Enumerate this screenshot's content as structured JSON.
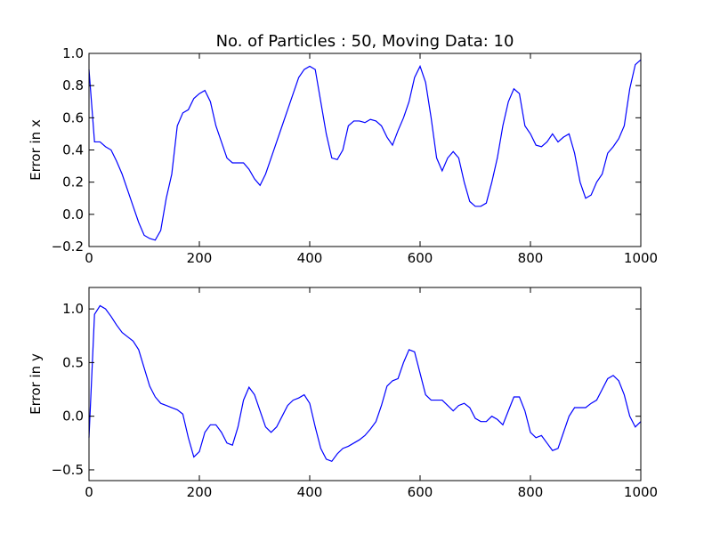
{
  "chart_data": [
    {
      "type": "line",
      "title": "No. of Particles : 50, Moving Data: 10",
      "ylabel": "Error in x",
      "color": "#0000ff",
      "x": [
        0,
        10,
        20,
        30,
        40,
        50,
        60,
        70,
        80,
        90,
        100,
        110,
        120,
        130,
        140,
        150,
        160,
        170,
        180,
        190,
        200,
        210,
        220,
        230,
        240,
        250,
        260,
        270,
        280,
        290,
        300,
        310,
        320,
        330,
        340,
        350,
        360,
        370,
        380,
        390,
        400,
        410,
        420,
        430,
        440,
        450,
        460,
        470,
        480,
        490,
        500,
        510,
        520,
        530,
        540,
        550,
        560,
        570,
        580,
        590,
        600,
        610,
        620,
        630,
        640,
        650,
        660,
        670,
        680,
        690,
        700,
        710,
        720,
        730,
        740,
        750,
        760,
        770,
        780,
        790,
        800,
        810,
        820,
        830,
        840,
        850,
        860,
        870,
        880,
        890,
        900,
        910,
        920,
        930,
        940,
        950,
        960,
        970,
        980,
        990,
        1000
      ],
      "values": [
        0.9,
        0.45,
        0.45,
        0.42,
        0.4,
        0.33,
        0.25,
        0.15,
        0.05,
        -0.05,
        -0.13,
        -0.15,
        -0.16,
        -0.1,
        0.1,
        0.25,
        0.55,
        0.63,
        0.65,
        0.72,
        0.75,
        0.77,
        0.7,
        0.55,
        0.45,
        0.35,
        0.32,
        0.32,
        0.32,
        0.28,
        0.22,
        0.18,
        0.25,
        0.35,
        0.45,
        0.55,
        0.65,
        0.75,
        0.85,
        0.9,
        0.92,
        0.9,
        0.7,
        0.5,
        0.35,
        0.34,
        0.4,
        0.55,
        0.58,
        0.58,
        0.57,
        0.59,
        0.58,
        0.55,
        0.48,
        0.43,
        0.52,
        0.6,
        0.7,
        0.85,
        0.92,
        0.82,
        0.6,
        0.35,
        0.27,
        0.35,
        0.39,
        0.35,
        0.2,
        0.08,
        0.05,
        0.05,
        0.07,
        0.2,
        0.35,
        0.55,
        0.7,
        0.78,
        0.75,
        0.55,
        0.5,
        0.43,
        0.42,
        0.45,
        0.5,
        0.45,
        0.48,
        0.5,
        0.38,
        0.2,
        0.1,
        0.12,
        0.2,
        0.25,
        0.38,
        0.42,
        0.47,
        0.55,
        0.78,
        0.93,
        0.96
      ],
      "xlim": [
        0,
        1000
      ],
      "xticks": [
        0,
        200,
        400,
        600,
        800,
        1000
      ],
      "ylim": [
        -0.2,
        1.0
      ],
      "yticks": [
        {
          "value": -0.2,
          "label": "−0.2"
        },
        {
          "value": 0,
          "label": "0.0"
        },
        0.2,
        0.4,
        0.6,
        0.8,
        {
          "value": 1.0,
          "label": "1.0"
        }
      ]
    },
    {
      "type": "line",
      "ylabel": "Error in y",
      "color": "#0000ff",
      "x": [
        0,
        10,
        20,
        30,
        40,
        50,
        60,
        70,
        80,
        90,
        100,
        110,
        120,
        130,
        140,
        150,
        160,
        170,
        180,
        190,
        200,
        210,
        220,
        230,
        240,
        250,
        260,
        270,
        280,
        290,
        300,
        310,
        320,
        330,
        340,
        350,
        360,
        370,
        380,
        390,
        400,
        410,
        420,
        430,
        440,
        450,
        460,
        470,
        480,
        490,
        500,
        510,
        520,
        530,
        540,
        550,
        560,
        570,
        580,
        590,
        600,
        610,
        620,
        630,
        640,
        650,
        660,
        670,
        680,
        690,
        700,
        710,
        720,
        730,
        740,
        750,
        760,
        770,
        780,
        790,
        800,
        810,
        820,
        830,
        840,
        850,
        860,
        870,
        880,
        890,
        900,
        910,
        920,
        930,
        940,
        950,
        960,
        970,
        980,
        990,
        1000
      ],
      "values": [
        -0.2,
        0.95,
        1.03,
        1.0,
        0.93,
        0.85,
        0.78,
        0.74,
        0.7,
        0.62,
        0.45,
        0.28,
        0.18,
        0.12,
        0.1,
        0.08,
        0.06,
        0.02,
        -0.2,
        -0.38,
        -0.33,
        -0.15,
        -0.08,
        -0.08,
        -0.15,
        -0.25,
        -0.27,
        -0.1,
        0.15,
        0.27,
        0.2,
        0.05,
        -0.1,
        -0.15,
        -0.1,
        0.0,
        0.1,
        0.15,
        0.17,
        0.2,
        0.12,
        -0.1,
        -0.3,
        -0.4,
        -0.42,
        -0.35,
        -0.3,
        -0.28,
        -0.25,
        -0.22,
        -0.18,
        -0.12,
        -0.05,
        0.1,
        0.28,
        0.33,
        0.35,
        0.5,
        0.62,
        0.6,
        0.4,
        0.2,
        0.15,
        0.15,
        0.15,
        0.1,
        0.05,
        0.1,
        0.12,
        0.08,
        -0.02,
        -0.05,
        -0.05,
        0.0,
        -0.03,
        -0.08,
        0.05,
        0.18,
        0.18,
        0.05,
        -0.15,
        -0.2,
        -0.18,
        -0.25,
        -0.32,
        -0.3,
        -0.15,
        0.0,
        0.08,
        0.08,
        0.08,
        0.12,
        0.15,
        0.25,
        0.35,
        0.38,
        0.33,
        0.2,
        0.0,
        -0.1,
        -0.05
      ],
      "xlim": [
        0,
        1000
      ],
      "xticks": [
        0,
        200,
        400,
        600,
        800,
        1000
      ],
      "ylim": [
        -0.6,
        1.2
      ],
      "yticks": [
        {
          "value": -0.5,
          "label": "−0.5"
        },
        {
          "value": 0,
          "label": "0.0"
        },
        0.5,
        {
          "value": 1.0,
          "label": "1.0"
        }
      ]
    }
  ]
}
